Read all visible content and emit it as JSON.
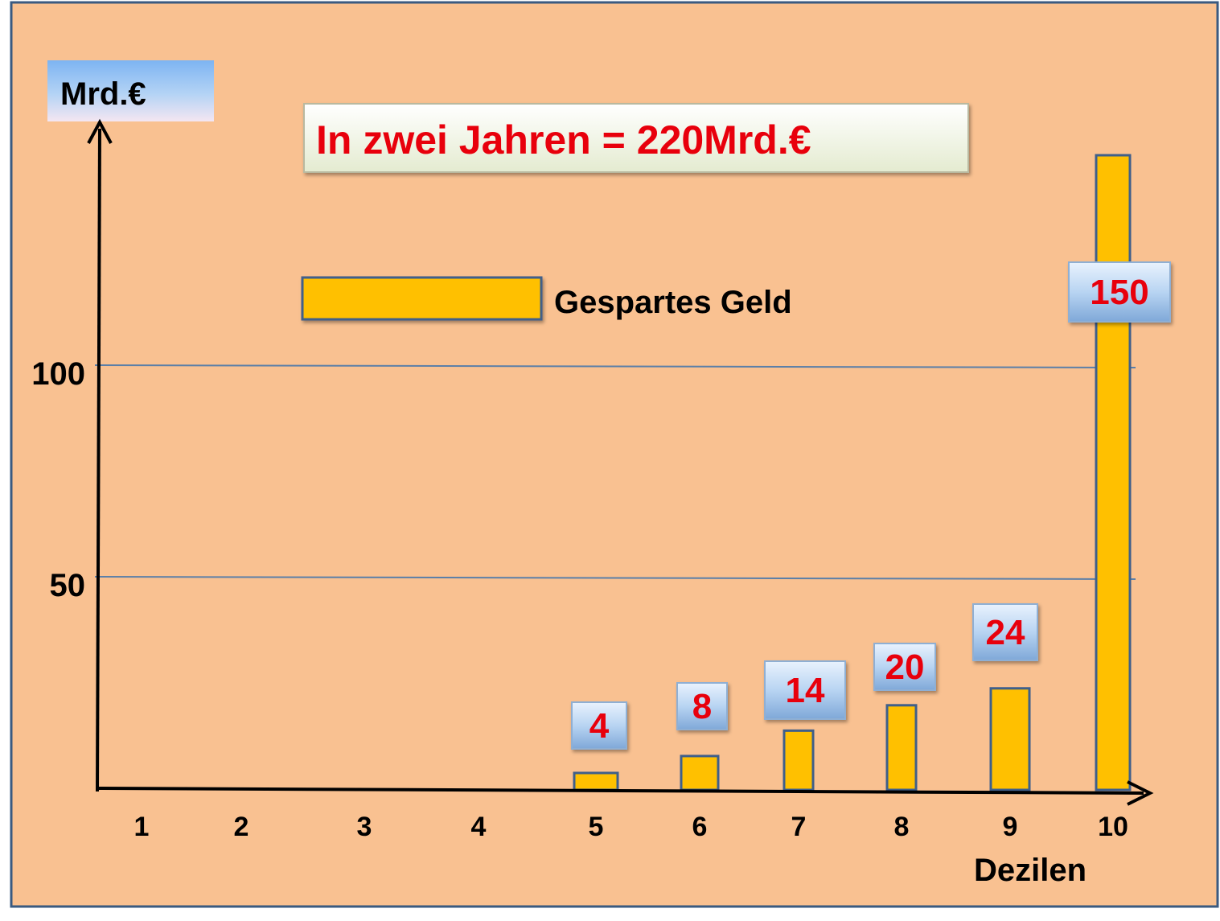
{
  "colors": {
    "background": "#F9C191",
    "frame": "#3A5A80",
    "bar_fill": "#FFC000",
    "bar_stroke": "#3F5F8A",
    "gridline": "#5B7FA8",
    "label_text": "#E8000C",
    "axis": "#000000"
  },
  "chart_data": {
    "type": "bar",
    "title": "In zwei Jahren = 220Mrd.€",
    "ylabel": "Mrd.€",
    "xlabel": "Dezilen",
    "categories": [
      "1",
      "2",
      "3",
      "4",
      "5",
      "6",
      "7",
      "8",
      "9",
      "10"
    ],
    "series": [
      {
        "name": "Gespartes Geld",
        "values": [
          null,
          null,
          null,
          null,
          4,
          8,
          14,
          20,
          24,
          150
        ]
      }
    ],
    "data_labels": [
      "",
      "",
      "",
      "",
      "4",
      "8",
      "14",
      "20",
      "24",
      "150"
    ],
    "yticks": [
      "50",
      "100"
    ],
    "ylim": [
      0,
      155
    ],
    "grid": true,
    "legend": "top-center"
  }
}
